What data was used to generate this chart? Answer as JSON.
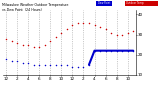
{
  "title": "Milwaukee Weather Outdoor Temperature vs Dew Point (24 Hours)",
  "temp_x": [
    0,
    1,
    2,
    3,
    4,
    5,
    6,
    7,
    8,
    9,
    10,
    11,
    12,
    13,
    14,
    15,
    16,
    17,
    18,
    19,
    20,
    21,
    22,
    23
  ],
  "temp_y": [
    28,
    27,
    26,
    25,
    25,
    24,
    24,
    25,
    27,
    29,
    31,
    33,
    35,
    36,
    36,
    36,
    35,
    34,
    33,
    31,
    30,
    30,
    31,
    32
  ],
  "dew_x": [
    0,
    1,
    2,
    3,
    4,
    5,
    6,
    7,
    8,
    9,
    10,
    11,
    12,
    13,
    14,
    15,
    16,
    17,
    18,
    19,
    20,
    21,
    22,
    23
  ],
  "dew_y": [
    18,
    17,
    17,
    16,
    16,
    15,
    15,
    15,
    15,
    15,
    15,
    15,
    14,
    14,
    14,
    15,
    22,
    22,
    22,
    22,
    22,
    22,
    22,
    22
  ],
  "temp_color": "#cc0000",
  "dew_color": "#0000cc",
  "bg_color": "#ffffff",
  "grid_color": "#888888",
  "ylim": [
    10,
    42
  ],
  "xlim": [
    -0.5,
    23.5
  ],
  "yticks": [
    10,
    20,
    30,
    40
  ],
  "xticks": [
    0,
    2,
    4,
    6,
    8,
    10,
    12,
    14,
    16,
    18,
    20,
    22
  ],
  "xtick_labels": [
    "12",
    "2",
    "4",
    "6",
    "8",
    "10",
    "12",
    "2",
    "4",
    "6",
    "8",
    "10"
  ],
  "legend_temp": "Outdoor Temp",
  "legend_dew": "Dew Point",
  "dew_line_start": 15
}
